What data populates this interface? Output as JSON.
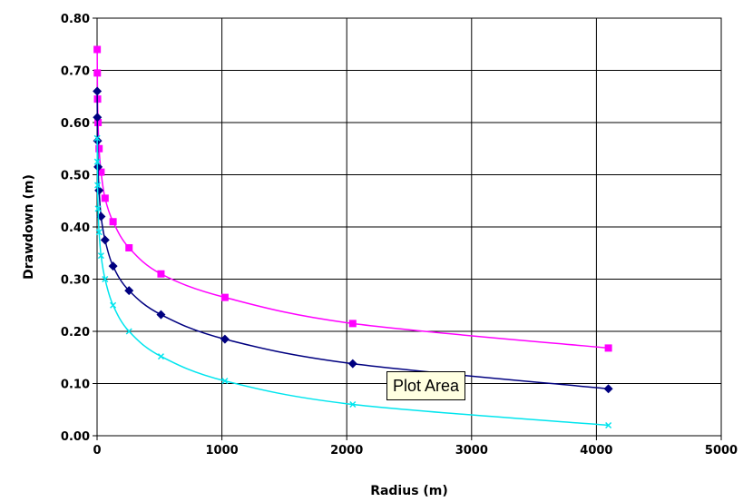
{
  "chart_data": {
    "type": "scatter",
    "title": "",
    "xlabel": "Radius (m)",
    "ylabel": "Drawdown (m)",
    "xlim": [
      0,
      5000
    ],
    "ylim": [
      0,
      0.8
    ],
    "xticks": [
      0,
      1000,
      2000,
      3000,
      4000,
      5000
    ],
    "yticks": [
      "0.00",
      "0.10",
      "0.20",
      "0.30",
      "0.40",
      "0.50",
      "0.60",
      "0.70",
      "0.80"
    ],
    "grid": true,
    "legend": "none",
    "series": [
      {
        "color": "#ff00ff",
        "marker": "square",
        "x": [
          1,
          2,
          4,
          8,
          16,
          32,
          64,
          128,
          256,
          512,
          1024,
          2048,
          4096
        ],
        "y": [
          0.74,
          0.695,
          0.645,
          0.6,
          0.55,
          0.505,
          0.455,
          0.41,
          0.36,
          0.31,
          0.265,
          0.215,
          0.168
        ]
      },
      {
        "color": "#000080",
        "marker": "diamond",
        "x": [
          1,
          2,
          4,
          8,
          16,
          32,
          64,
          128,
          256,
          512,
          1024,
          2048,
          4096
        ],
        "y": [
          0.66,
          0.61,
          0.565,
          0.515,
          0.47,
          0.42,
          0.375,
          0.325,
          0.278,
          0.232,
          0.185,
          0.138,
          0.09
        ]
      },
      {
        "color": "#00e5ee",
        "marker": "x",
        "x": [
          1,
          2,
          4,
          8,
          16,
          32,
          64,
          128,
          256,
          512,
          1024,
          2048,
          4096
        ],
        "y": [
          0.57,
          0.525,
          0.48,
          0.435,
          0.39,
          0.345,
          0.3,
          0.25,
          0.2,
          0.152,
          0.105,
          0.06,
          0.02
        ]
      }
    ]
  },
  "tooltip": {
    "text": "Plot Area"
  }
}
